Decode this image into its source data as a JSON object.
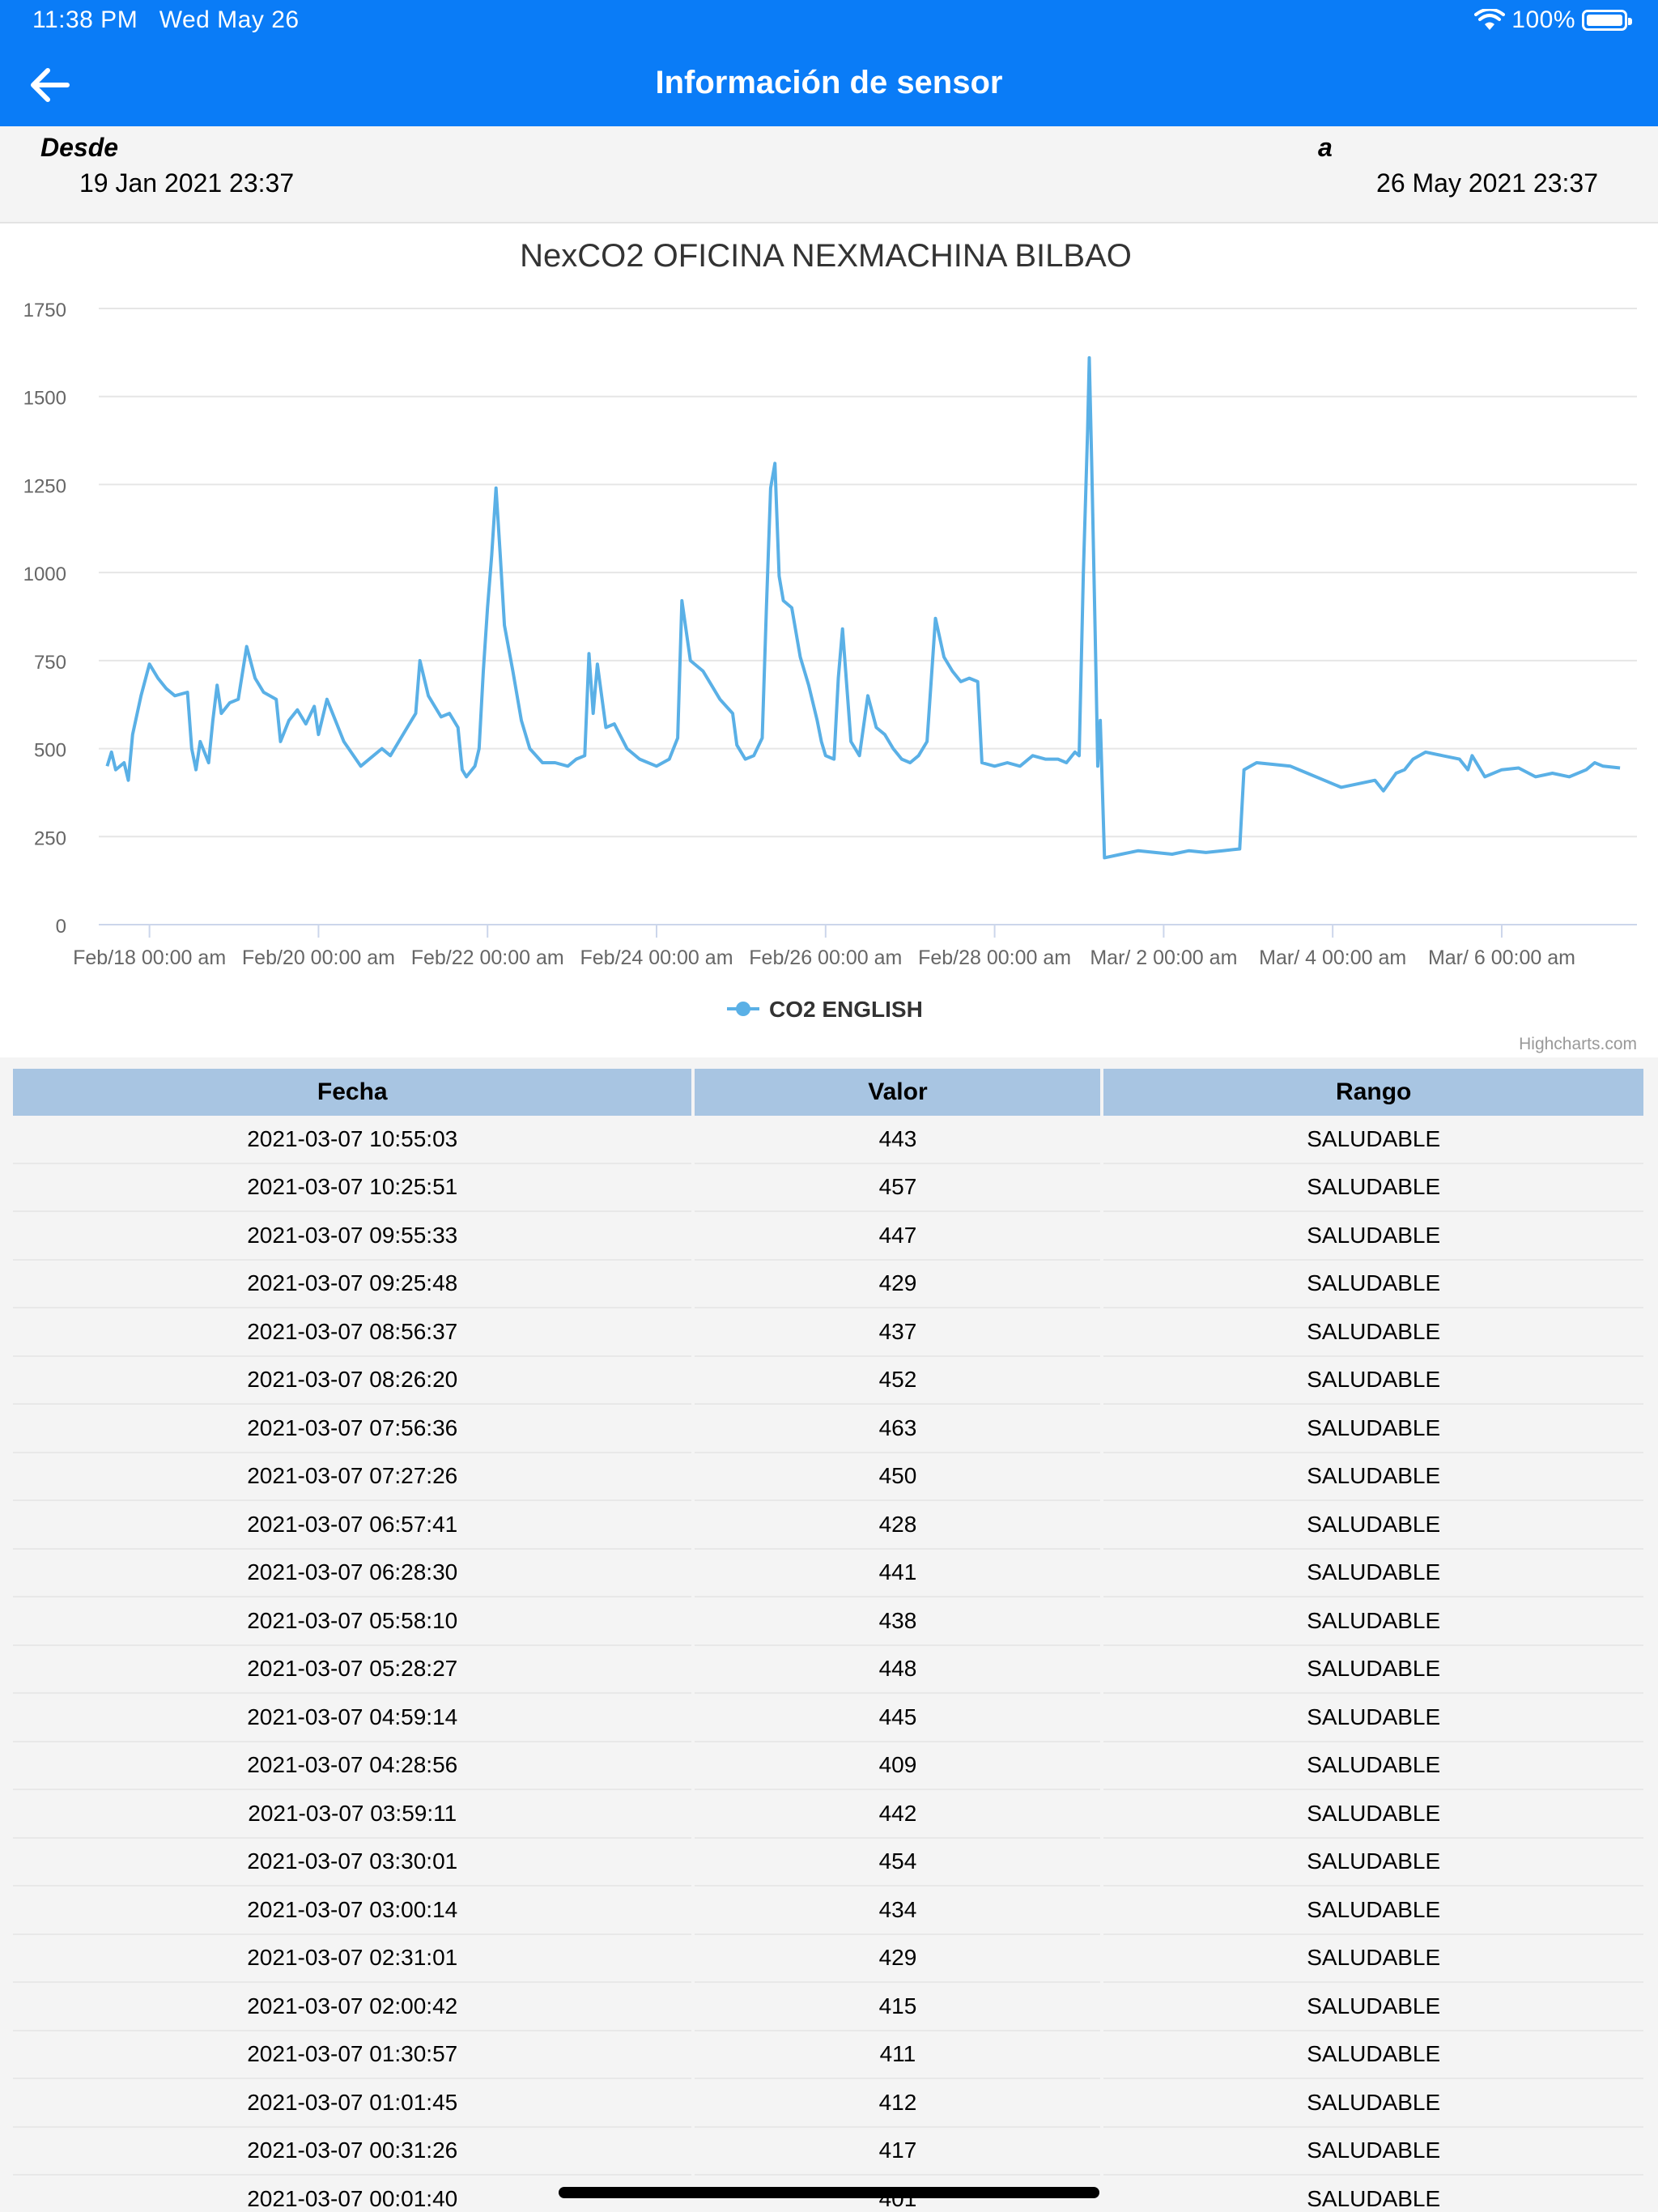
{
  "status_bar": {
    "time": "11:38 PM",
    "date": "Wed May 26",
    "battery": "100%"
  },
  "header": {
    "title": "Información de sensor",
    "back_icon": "arrow-left-icon"
  },
  "date_range": {
    "from_label": "Desde",
    "from_value": "19 Jan 2021 23:37",
    "to_label": "a",
    "to_value": "26 May 2021 23:37"
  },
  "colors": {
    "header": "#0a7cf7",
    "series": "#5ab0e6",
    "table_header": "#a8c5e2"
  },
  "chart_data": {
    "type": "line",
    "title": "NexCO2 OFICINA NEXMACHINA BILBAO",
    "credits": "Highcharts.com",
    "legend": "bottom-center",
    "grid": true,
    "ylim": [
      0,
      1750
    ],
    "yticks": [
      0,
      250,
      500,
      750,
      1000,
      1250,
      1500,
      1750
    ],
    "xlim": [
      -0.6,
      17.6
    ],
    "xticks": [
      {
        "x": 0,
        "label": "Feb/18 00:00 am"
      },
      {
        "x": 2,
        "label": "Feb/20 00:00 am"
      },
      {
        "x": 4,
        "label": "Feb/22 00:00 am"
      },
      {
        "x": 6,
        "label": "Feb/24 00:00 am"
      },
      {
        "x": 8,
        "label": "Feb/26 00:00 am"
      },
      {
        "x": 10,
        "label": "Feb/28 00:00 am"
      },
      {
        "x": 12,
        "label": "Mar/ 2 00:00 am"
      },
      {
        "x": 14,
        "label": "Mar/ 4 00:00 am"
      },
      {
        "x": 16,
        "label": "Mar/ 6 00:00 am"
      }
    ],
    "series": [
      {
        "name": "CO2 ENGLISH",
        "points": [
          [
            -0.5,
            450
          ],
          [
            -0.45,
            490
          ],
          [
            -0.4,
            440
          ],
          [
            -0.3,
            460
          ],
          [
            -0.25,
            410
          ],
          [
            -0.2,
            540
          ],
          [
            -0.1,
            650
          ],
          [
            0.0,
            740
          ],
          [
            0.1,
            700
          ],
          [
            0.2,
            670
          ],
          [
            0.3,
            650
          ],
          [
            0.45,
            660
          ],
          [
            0.5,
            500
          ],
          [
            0.55,
            440
          ],
          [
            0.6,
            520
          ],
          [
            0.7,
            460
          ],
          [
            0.75,
            580
          ],
          [
            0.8,
            680
          ],
          [
            0.85,
            600
          ],
          [
            0.95,
            630
          ],
          [
            1.05,
            640
          ],
          [
            1.15,
            790
          ],
          [
            1.25,
            700
          ],
          [
            1.35,
            660
          ],
          [
            1.5,
            640
          ],
          [
            1.55,
            520
          ],
          [
            1.65,
            580
          ],
          [
            1.75,
            610
          ],
          [
            1.85,
            570
          ],
          [
            1.95,
            620
          ],
          [
            2.0,
            540
          ],
          [
            2.1,
            640
          ],
          [
            2.2,
            580
          ],
          [
            2.3,
            520
          ],
          [
            2.5,
            450
          ],
          [
            2.6,
            470
          ],
          [
            2.75,
            500
          ],
          [
            2.85,
            480
          ],
          [
            2.95,
            520
          ],
          [
            3.05,
            560
          ],
          [
            3.15,
            600
          ],
          [
            3.2,
            750
          ],
          [
            3.3,
            650
          ],
          [
            3.45,
            590
          ],
          [
            3.55,
            600
          ],
          [
            3.65,
            560
          ],
          [
            3.7,
            440
          ],
          [
            3.75,
            420
          ],
          [
            3.85,
            450
          ],
          [
            3.9,
            500
          ],
          [
            3.95,
            720
          ],
          [
            4.0,
            900
          ],
          [
            4.05,
            1050
          ],
          [
            4.1,
            1240
          ],
          [
            4.15,
            1050
          ],
          [
            4.2,
            850
          ],
          [
            4.3,
            720
          ],
          [
            4.4,
            580
          ],
          [
            4.5,
            500
          ],
          [
            4.65,
            460
          ],
          [
            4.8,
            460
          ],
          [
            4.95,
            450
          ],
          [
            5.05,
            470
          ],
          [
            5.15,
            480
          ],
          [
            5.2,
            770
          ],
          [
            5.25,
            600
          ],
          [
            5.3,
            740
          ],
          [
            5.4,
            560
          ],
          [
            5.5,
            570
          ],
          [
            5.65,
            500
          ],
          [
            5.8,
            470
          ],
          [
            6.0,
            450
          ],
          [
            6.15,
            470
          ],
          [
            6.25,
            530
          ],
          [
            6.3,
            920
          ],
          [
            6.4,
            750
          ],
          [
            6.55,
            720
          ],
          [
            6.65,
            680
          ],
          [
            6.75,
            640
          ],
          [
            6.9,
            600
          ],
          [
            6.95,
            510
          ],
          [
            7.05,
            470
          ],
          [
            7.15,
            480
          ],
          [
            7.25,
            530
          ],
          [
            7.3,
            900
          ],
          [
            7.35,
            1240
          ],
          [
            7.4,
            1310
          ],
          [
            7.45,
            990
          ],
          [
            7.5,
            920
          ],
          [
            7.6,
            900
          ],
          [
            7.7,
            760
          ],
          [
            7.8,
            680
          ],
          [
            7.9,
            580
          ],
          [
            7.95,
            520
          ],
          [
            8.0,
            480
          ],
          [
            8.1,
            470
          ],
          [
            8.15,
            700
          ],
          [
            8.2,
            840
          ],
          [
            8.25,
            680
          ],
          [
            8.3,
            520
          ],
          [
            8.4,
            480
          ],
          [
            8.5,
            650
          ],
          [
            8.6,
            560
          ],
          [
            8.7,
            540
          ],
          [
            8.8,
            500
          ],
          [
            8.9,
            470
          ],
          [
            9.0,
            460
          ],
          [
            9.1,
            480
          ],
          [
            9.2,
            520
          ],
          [
            9.3,
            870
          ],
          [
            9.4,
            760
          ],
          [
            9.5,
            720
          ],
          [
            9.6,
            690
          ],
          [
            9.7,
            700
          ],
          [
            9.8,
            690
          ],
          [
            9.85,
            460
          ],
          [
            10.0,
            450
          ],
          [
            10.15,
            460
          ],
          [
            10.3,
            450
          ],
          [
            10.45,
            480
          ],
          [
            10.6,
            470
          ],
          [
            10.75,
            470
          ],
          [
            10.85,
            460
          ],
          [
            10.95,
            490
          ],
          [
            11.0,
            480
          ],
          [
            11.05,
            1000
          ],
          [
            11.1,
            1400
          ],
          [
            11.12,
            1610
          ],
          [
            11.15,
            1300
          ],
          [
            11.2,
            700
          ],
          [
            11.22,
            450
          ],
          [
            11.25,
            580
          ],
          [
            11.3,
            190
          ],
          [
            11.5,
            200
          ],
          [
            11.7,
            210
          ],
          [
            11.9,
            205
          ],
          [
            12.1,
            200
          ],
          [
            12.3,
            210
          ],
          [
            12.5,
            205
          ],
          [
            12.7,
            210
          ],
          [
            12.9,
            215
          ],
          [
            12.95,
            440
          ],
          [
            13.1,
            460
          ],
          [
            13.3,
            455
          ],
          [
            13.5,
            450
          ],
          [
            13.7,
            430
          ],
          [
            13.9,
            410
          ],
          [
            14.1,
            390
          ],
          [
            14.3,
            400
          ],
          [
            14.5,
            410
          ],
          [
            14.6,
            380
          ],
          [
            14.75,
            430
          ],
          [
            14.85,
            440
          ],
          [
            14.95,
            470
          ],
          [
            15.1,
            490
          ],
          [
            15.3,
            480
          ],
          [
            15.5,
            470
          ],
          [
            15.6,
            440
          ],
          [
            15.65,
            480
          ],
          [
            15.8,
            420
          ],
          [
            16.0,
            440
          ],
          [
            16.2,
            445
          ],
          [
            16.4,
            420
          ],
          [
            16.6,
            430
          ],
          [
            16.8,
            420
          ],
          [
            17.0,
            440
          ],
          [
            17.1,
            460
          ],
          [
            17.2,
            450
          ],
          [
            17.4,
            445
          ]
        ]
      }
    ]
  },
  "table": {
    "headers": {
      "fecha": "Fecha",
      "valor": "Valor",
      "rango": "Rango"
    },
    "rows": [
      {
        "fecha": "2021-03-07 10:55:03",
        "valor": "443",
        "rango": "SALUDABLE"
      },
      {
        "fecha": "2021-03-07 10:25:51",
        "valor": "457",
        "rango": "SALUDABLE"
      },
      {
        "fecha": "2021-03-07 09:55:33",
        "valor": "447",
        "rango": "SALUDABLE"
      },
      {
        "fecha": "2021-03-07 09:25:48",
        "valor": "429",
        "rango": "SALUDABLE"
      },
      {
        "fecha": "2021-03-07 08:56:37",
        "valor": "437",
        "rango": "SALUDABLE"
      },
      {
        "fecha": "2021-03-07 08:26:20",
        "valor": "452",
        "rango": "SALUDABLE"
      },
      {
        "fecha": "2021-03-07 07:56:36",
        "valor": "463",
        "rango": "SALUDABLE"
      },
      {
        "fecha": "2021-03-07 07:27:26",
        "valor": "450",
        "rango": "SALUDABLE"
      },
      {
        "fecha": "2021-03-07 06:57:41",
        "valor": "428",
        "rango": "SALUDABLE"
      },
      {
        "fecha": "2021-03-07 06:28:30",
        "valor": "441",
        "rango": "SALUDABLE"
      },
      {
        "fecha": "2021-03-07 05:58:10",
        "valor": "438",
        "rango": "SALUDABLE"
      },
      {
        "fecha": "2021-03-07 05:28:27",
        "valor": "448",
        "rango": "SALUDABLE"
      },
      {
        "fecha": "2021-03-07 04:59:14",
        "valor": "445",
        "rango": "SALUDABLE"
      },
      {
        "fecha": "2021-03-07 04:28:56",
        "valor": "409",
        "rango": "SALUDABLE"
      },
      {
        "fecha": "2021-03-07 03:59:11",
        "valor": "442",
        "rango": "SALUDABLE"
      },
      {
        "fecha": "2021-03-07 03:30:01",
        "valor": "454",
        "rango": "SALUDABLE"
      },
      {
        "fecha": "2021-03-07 03:00:14",
        "valor": "434",
        "rango": "SALUDABLE"
      },
      {
        "fecha": "2021-03-07 02:31:01",
        "valor": "429",
        "rango": "SALUDABLE"
      },
      {
        "fecha": "2021-03-07 02:00:42",
        "valor": "415",
        "rango": "SALUDABLE"
      },
      {
        "fecha": "2021-03-07 01:30:57",
        "valor": "411",
        "rango": "SALUDABLE"
      },
      {
        "fecha": "2021-03-07 01:01:45",
        "valor": "412",
        "rango": "SALUDABLE"
      },
      {
        "fecha": "2021-03-07 00:31:26",
        "valor": "417",
        "rango": "SALUDABLE"
      },
      {
        "fecha": "2021-03-07 00:01:40",
        "valor": "401",
        "rango": "SALUDABLE"
      }
    ]
  }
}
